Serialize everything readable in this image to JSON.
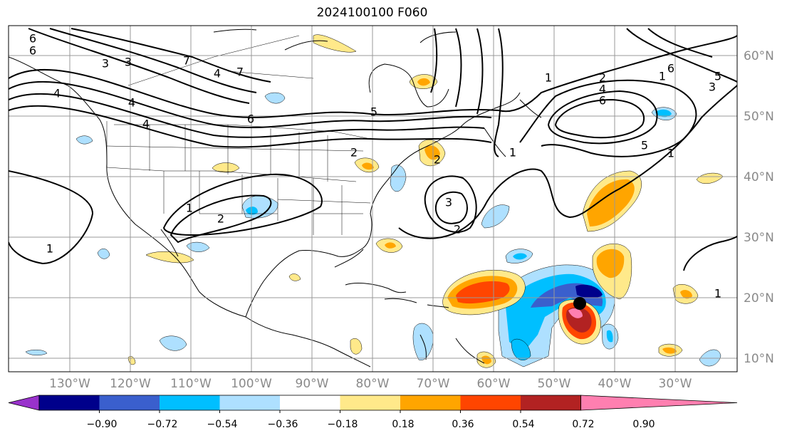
{
  "title": "2024100100 F060",
  "lat_labels": [
    "60°N",
    "50°N",
    "40°N",
    "30°N",
    "20°N",
    "10°N"
  ],
  "lon_labels": [
    "130°W",
    "120°W",
    "110°W",
    "100°W",
    "90°W",
    "80°W",
    "70°W",
    "60°W",
    "50°W",
    "40°W",
    "30°W"
  ],
  "contour_labels": [
    "6",
    "6",
    "3",
    "3",
    "4",
    "4",
    "4",
    "7",
    "7",
    "4",
    "6",
    "5",
    "2",
    "2",
    "1",
    "2",
    "3",
    "1",
    "2",
    "1",
    "2",
    "4",
    "6",
    "6",
    "5",
    "3",
    "5",
    "1",
    "1",
    "1",
    "1"
  ],
  "colorbar": {
    "ticks": [
      "−0.90",
      "−0.72",
      "−0.54",
      "−0.36",
      "−0.18",
      "0.18",
      "0.36",
      "0.54",
      "0.72",
      "0.90"
    ],
    "colors": [
      "#9932cc",
      "#00008b",
      "#3a5fcd",
      "#00bfff",
      "#aee0ff",
      "#ffffff",
      "#ffe98a",
      "#ffa500",
      "#ff4500",
      "#b22222",
      "#ff7fb0"
    ]
  },
  "marker": {
    "name": "storm-center-dot",
    "color": "#000000"
  }
}
